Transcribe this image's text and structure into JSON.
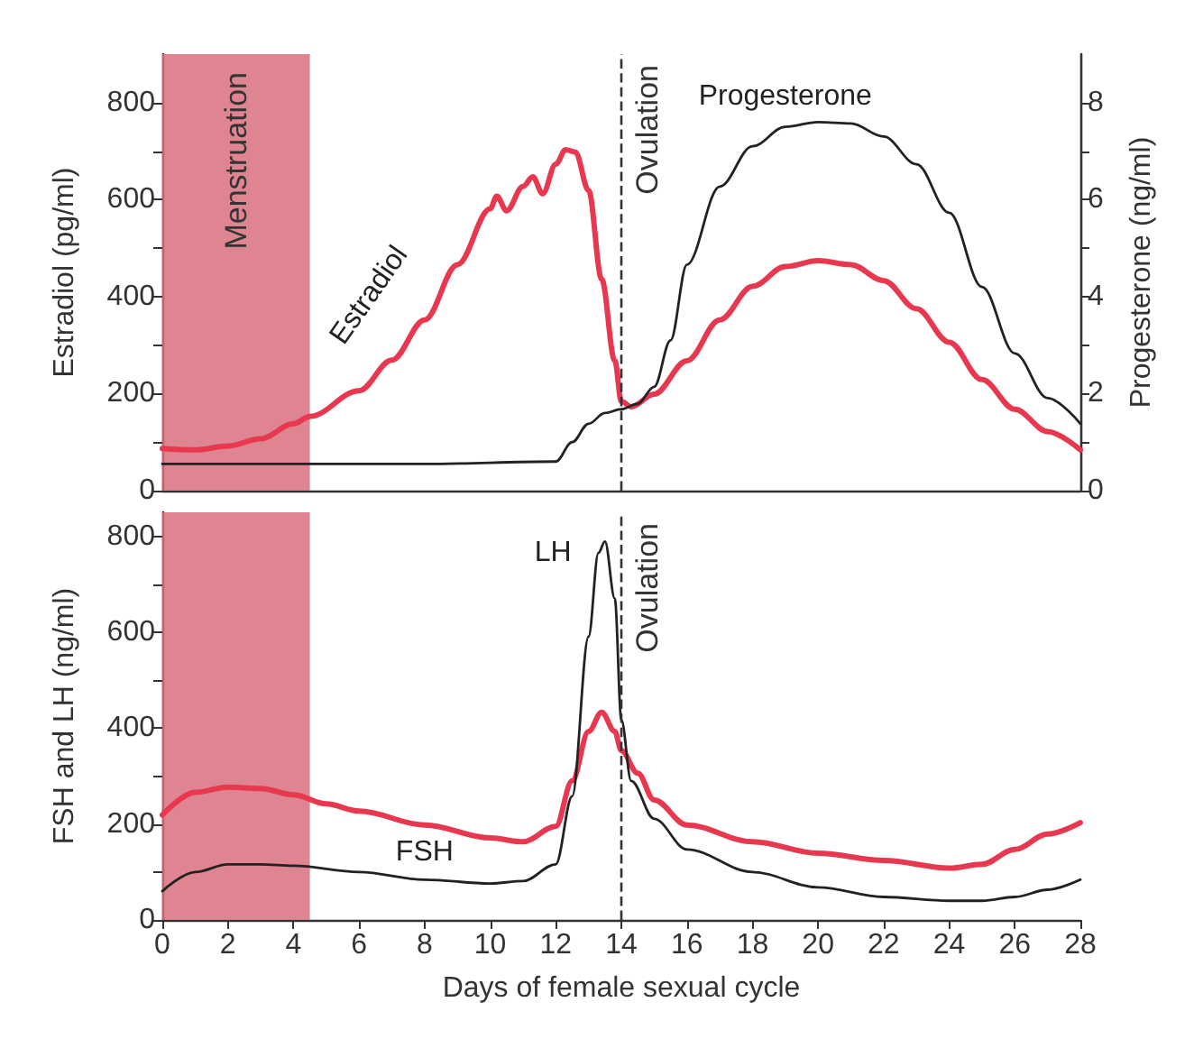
{
  "chart_data": [
    {
      "type": "line",
      "ylabel": "Estradiol (pg/ml)",
      "y2label": "Progesterone (ng/ml)",
      "xlim": [
        0,
        28
      ],
      "ylim": [
        0,
        900
      ],
      "y2lim": [
        0,
        9
      ],
      "yticks": [
        0,
        {
          "value": 100,
          "label": null
        },
        200,
        {
          "value": 300,
          "label": null
        },
        400,
        {
          "value": 500,
          "label": null
        },
        600,
        {
          "value": 700,
          "label": null
        },
        800
      ],
      "y2ticks": [
        0,
        {
          "value": 1,
          "label": null
        },
        2,
        {
          "value": 3,
          "label": null
        },
        4,
        {
          "value": 5,
          "label": null
        },
        6,
        {
          "value": 7,
          "label": null
        },
        8
      ],
      "tick_labels": "y",
      "grid": false,
      "legend": false,
      "marker": "none",
      "line_style": "solid",
      "bands": [
        {
          "axis": "x",
          "from": 0,
          "to": 4.5,
          "label": "Menstruation",
          "color": "#d9707f"
        }
      ],
      "ref_lines": [
        {
          "axis": "x",
          "value": 14,
          "label": "Ovulation",
          "line_style": "dashed",
          "color": "#333333"
        }
      ],
      "series": [
        {
          "name": "Estradiol",
          "color": "#e8384f",
          "x": [
            0,
            1,
            2,
            3,
            4,
            4.5,
            6,
            7,
            8,
            9,
            10,
            10.2,
            10.5,
            11,
            11.3,
            11.6,
            12,
            12.3,
            12.6,
            13,
            13.4,
            13.8,
            14,
            14.3,
            15,
            16,
            17,
            18,
            19,
            20,
            21,
            22,
            23,
            24,
            25,
            26,
            27,
            28
          ],
          "values": [
            87,
            84,
            92,
            107,
            138,
            153,
            206,
            269,
            352,
            466,
            581,
            607,
            577,
            627,
            647,
            612,
            673,
            703,
            698,
            619,
            436,
            268,
            184,
            173,
            199,
            268,
            352,
            421,
            462,
            474,
            466,
            433,
            375,
            306,
            229,
            168,
            122,
            84
          ]
        },
        {
          "name": "Progesterone",
          "color": "#222222",
          "axis": "y2",
          "x": [
            0,
            4,
            8,
            12,
            12.5,
            13,
            13.5,
            14,
            14.5,
            15,
            15.5,
            16,
            17,
            18,
            19,
            20,
            21,
            22,
            23,
            24,
            25,
            26,
            27,
            28
          ],
          "values": [
            0.55,
            0.55,
            0.55,
            0.6,
            1.0,
            1.38,
            1.6,
            1.68,
            1.79,
            2.14,
            3.1,
            4.66,
            6.27,
            7.1,
            7.5,
            7.6,
            7.57,
            7.3,
            6.73,
            5.73,
            4.2,
            2.83,
            1.91,
            1.38
          ]
        }
      ]
    },
    {
      "type": "line",
      "xlabel": "Days of female sexual cycle",
      "ylabel": "FSH and LH (ng/ml)",
      "xlim": [
        0,
        28
      ],
      "ylim": [
        0,
        850
      ],
      "xticks": [
        0,
        2,
        4,
        6,
        8,
        10,
        12,
        14,
        16,
        18,
        20,
        22,
        24,
        26,
        28
      ],
      "yticks": [
        0,
        {
          "value": 100,
          "label": null
        },
        200,
        {
          "value": 300,
          "label": null
        },
        400,
        {
          "value": 500,
          "label": null
        },
        600,
        {
          "value": 700,
          "label": null
        },
        800
      ],
      "grid": false,
      "legend": false,
      "marker": "none",
      "line_style": "solid",
      "bands": [
        {
          "axis": "x",
          "from": 0,
          "to": 4.5,
          "color": "#d9707f"
        }
      ],
      "ref_lines": [
        {
          "axis": "x",
          "value": 14,
          "label": "Ovulation",
          "line_style": "dashed",
          "color": "#333333"
        }
      ],
      "series": [
        {
          "name": "FSH",
          "color": "#e8384f",
          "x": [
            0,
            1,
            2,
            3,
            4,
            5,
            6,
            8,
            10,
            11,
            12,
            12.5,
            13,
            13.4,
            13.8,
            14,
            14.5,
            15,
            16,
            18,
            20,
            22,
            24,
            25,
            26,
            27,
            28
          ],
          "values": [
            219,
            266,
            277,
            274,
            261,
            242,
            227,
            198,
            171,
            163,
            195,
            290,
            393,
            433,
            393,
            353,
            306,
            250,
            198,
            163,
            139,
            124,
            108,
            116,
            147,
            179,
            203
          ]
        },
        {
          "name": "LH",
          "color": "#222222",
          "x": [
            0,
            1,
            2,
            3,
            4,
            6,
            8,
            10,
            11,
            12,
            12.5,
            13,
            13.3,
            13.5,
            13.8,
            14,
            14.3,
            15,
            16,
            18,
            20,
            22,
            24,
            25,
            26,
            27,
            28
          ],
          "values": [
            60,
            100,
            116,
            116,
            113,
            100,
            84,
            76,
            81,
            116,
            258,
            591,
            765,
            789,
            670,
            417,
            290,
            211,
            147,
            100,
            68,
            48,
            40,
            40,
            48,
            63,
            84
          ]
        }
      ]
    }
  ]
}
